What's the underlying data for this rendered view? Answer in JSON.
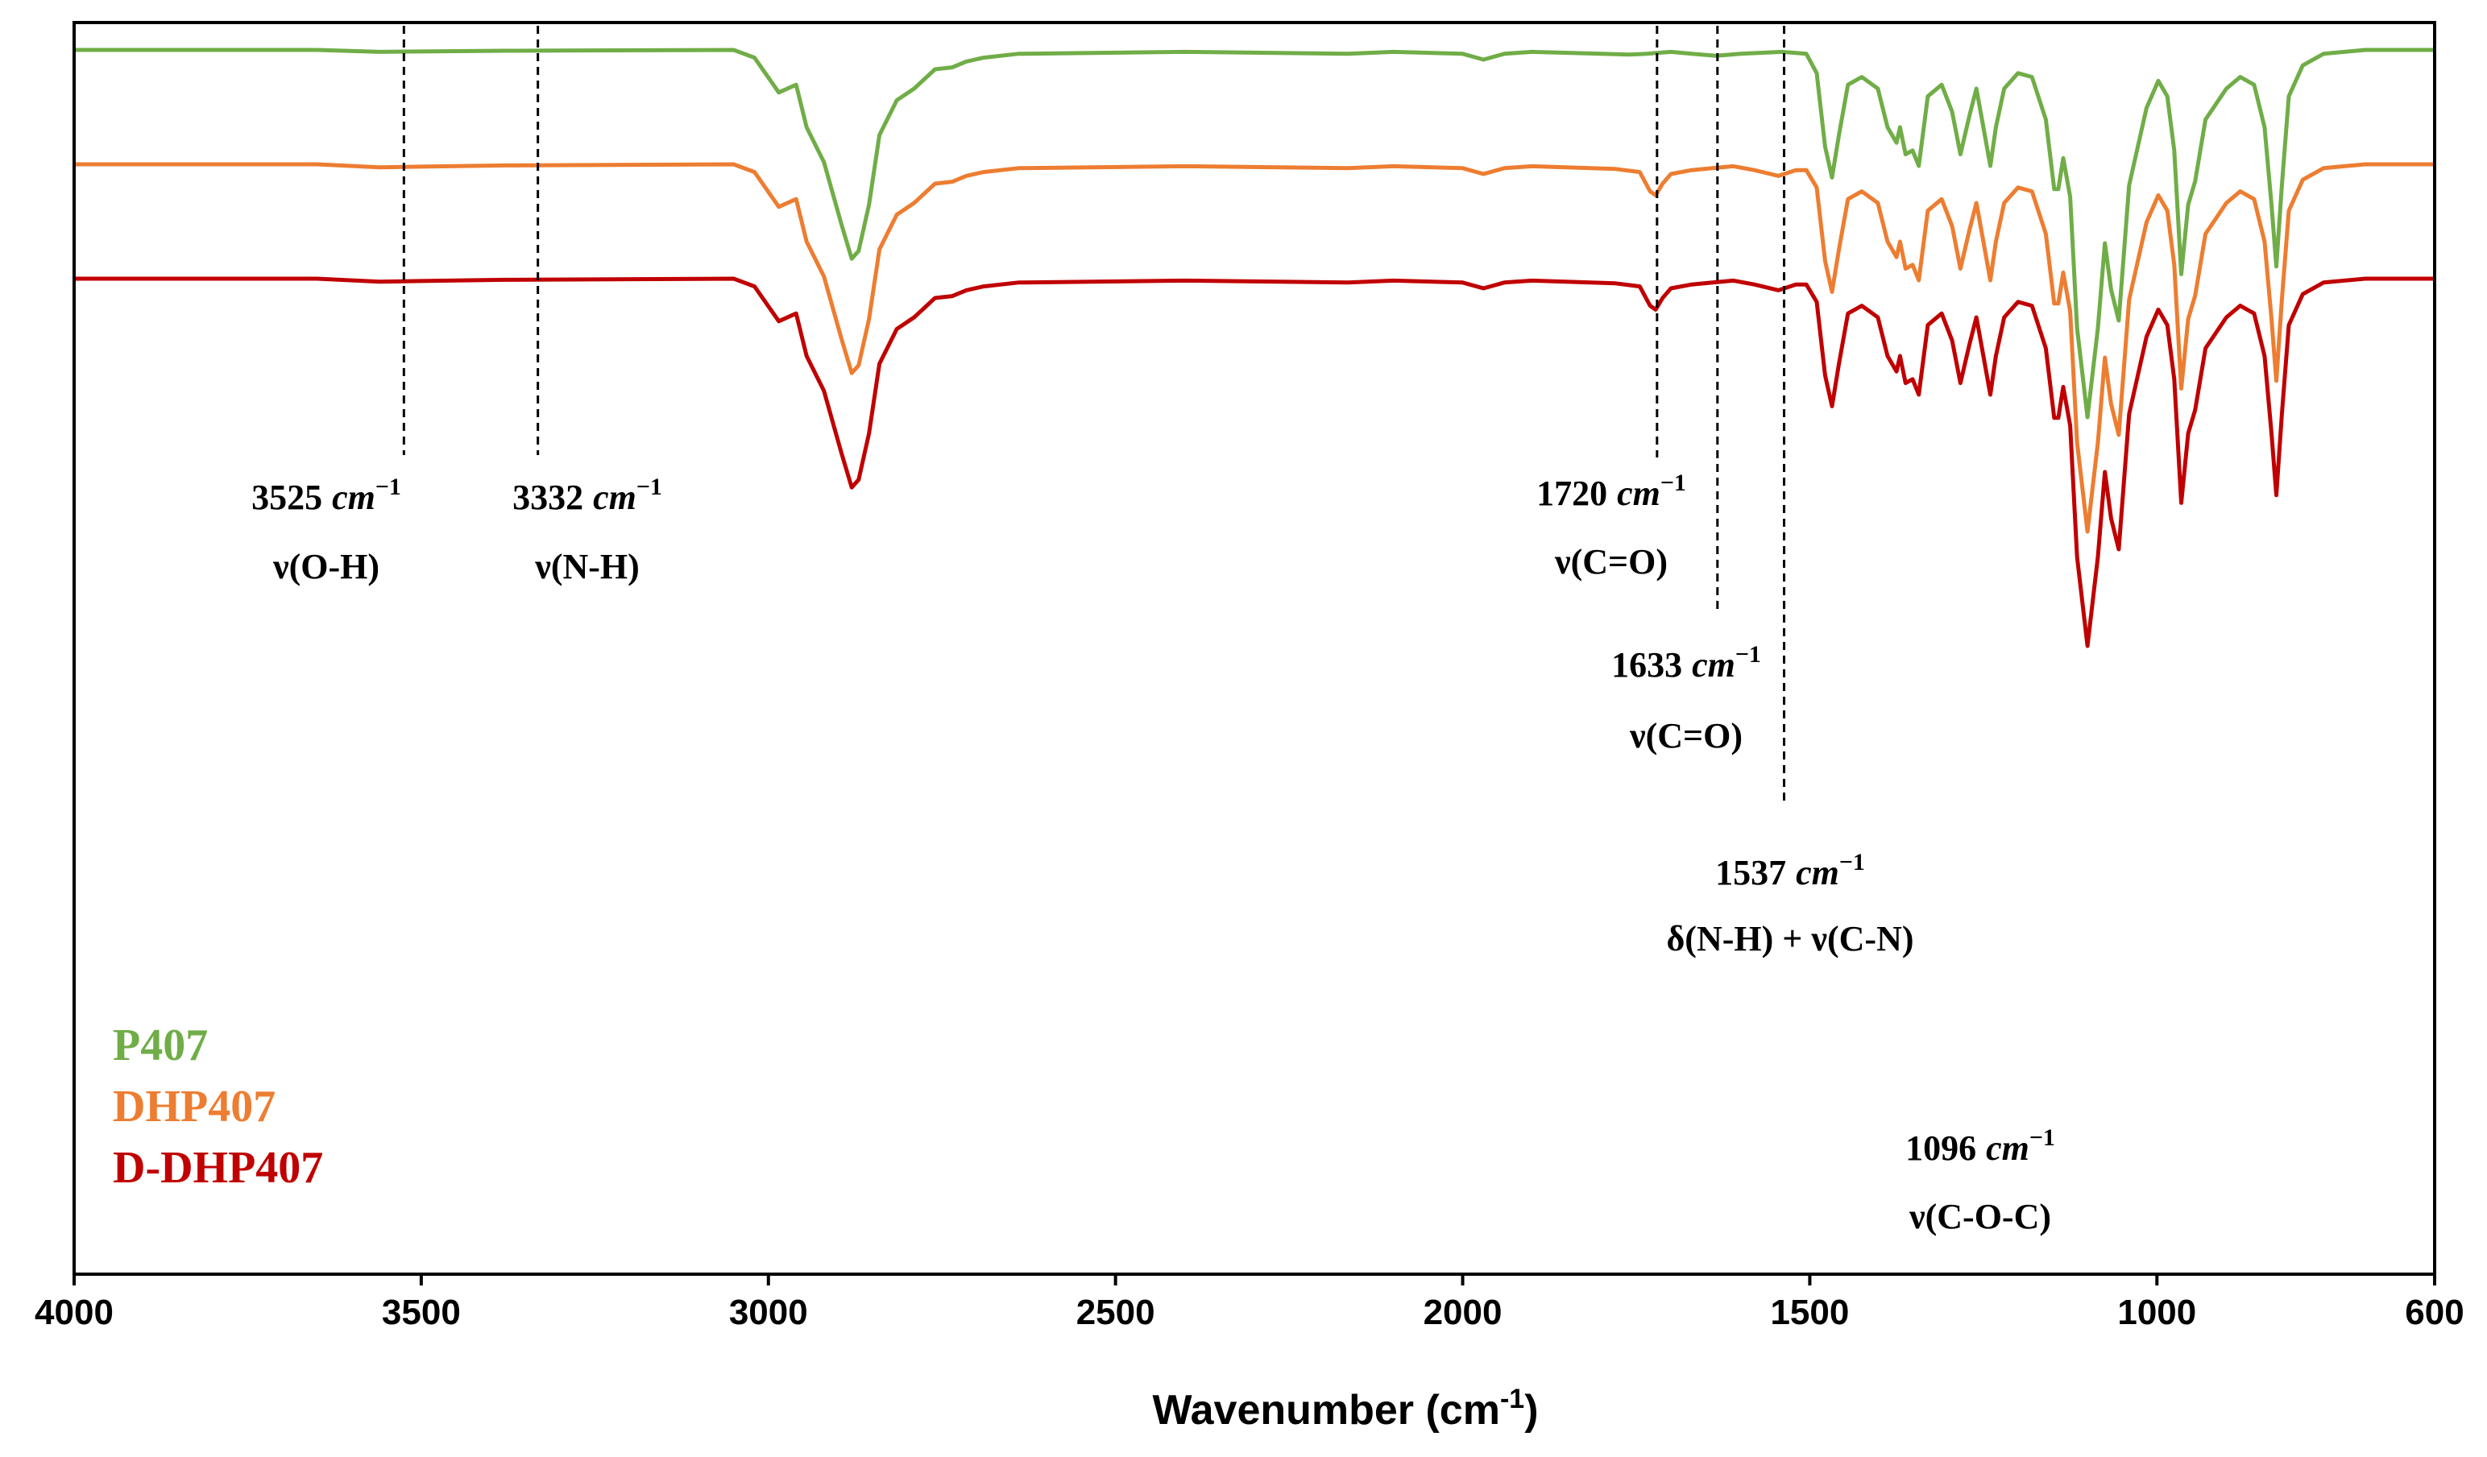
{
  "chart_data": {
    "type": "line",
    "title": "",
    "xlabel": "Wavenumber (cm",
    "xlabel_sup": "-1",
    "xlabel_close": ")",
    "ylabel": "",
    "xlim": [
      4000,
      600
    ],
    "x_reversed": true,
    "xticks": [
      4000,
      3500,
      3000,
      2500,
      2000,
      1500,
      1000,
      600
    ],
    "y_ticks_shown": false,
    "series": [
      {
        "name": "P407",
        "color": "#70ad47",
        "offset": 0,
        "points": [
          [
            4000,
            0
          ],
          [
            3650,
            0
          ],
          [
            3560,
            0.005
          ],
          [
            3500,
            0.004
          ],
          [
            3380,
            0.002
          ],
          [
            3050,
            0
          ],
          [
            3020,
            0.02
          ],
          [
            2985,
            0.11
          ],
          [
            2960,
            0.09
          ],
          [
            2945,
            0.2
          ],
          [
            2920,
            0.29
          ],
          [
            2895,
            0.45
          ],
          [
            2880,
            0.54
          ],
          [
            2870,
            0.52
          ],
          [
            2855,
            0.4
          ],
          [
            2840,
            0.22
          ],
          [
            2815,
            0.13
          ],
          [
            2790,
            0.1
          ],
          [
            2760,
            0.05
          ],
          [
            2735,
            0.045
          ],
          [
            2715,
            0.03
          ],
          [
            2690,
            0.02
          ],
          [
            2640,
            0.01
          ],
          [
            2400,
            0.005
          ],
          [
            2165,
            0.01
          ],
          [
            2100,
            0.005
          ],
          [
            2000,
            0.01
          ],
          [
            1970,
            0.025
          ],
          [
            1940,
            0.01
          ],
          [
            1900,
            0.005
          ],
          [
            1800,
            0.01
          ],
          [
            1760,
            0.012
          ],
          [
            1735,
            0.01
          ],
          [
            1700,
            0.005
          ],
          [
            1670,
            0.01
          ],
          [
            1635,
            0.015
          ],
          [
            1600,
            0.01
          ],
          [
            1540,
            0.005
          ],
          [
            1505,
            0.01
          ],
          [
            1490,
            0.06
          ],
          [
            1478,
            0.25
          ],
          [
            1468,
            0.33
          ],
          [
            1458,
            0.22
          ],
          [
            1445,
            0.09
          ],
          [
            1425,
            0.07
          ],
          [
            1402,
            0.1
          ],
          [
            1388,
            0.2
          ],
          [
            1375,
            0.24
          ],
          [
            1370,
            0.2
          ],
          [
            1362,
            0.27
          ],
          [
            1352,
            0.26
          ],
          [
            1343,
            0.3
          ],
          [
            1330,
            0.12
          ],
          [
            1310,
            0.09
          ],
          [
            1295,
            0.16
          ],
          [
            1283,
            0.27
          ],
          [
            1270,
            0.17
          ],
          [
            1260,
            0.1
          ],
          [
            1250,
            0.2
          ],
          [
            1240,
            0.3
          ],
          [
            1232,
            0.2
          ],
          [
            1220,
            0.1
          ],
          [
            1200,
            0.06
          ],
          [
            1180,
            0.07
          ],
          [
            1160,
            0.18
          ],
          [
            1148,
            0.36
          ],
          [
            1142,
            0.36
          ],
          [
            1135,
            0.28
          ],
          [
            1125,
            0.38
          ],
          [
            1115,
            0.72
          ],
          [
            1100,
            0.95
          ],
          [
            1085,
            0.72
          ],
          [
            1075,
            0.5
          ],
          [
            1066,
            0.62
          ],
          [
            1055,
            0.7
          ],
          [
            1040,
            0.35
          ],
          [
            1015,
            0.15
          ],
          [
            998,
            0.08
          ],
          [
            985,
            0.12
          ],
          [
            975,
            0.26
          ],
          [
            965,
            0.58
          ],
          [
            955,
            0.4
          ],
          [
            945,
            0.34
          ],
          [
            930,
            0.18
          ],
          [
            900,
            0.1
          ],
          [
            880,
            0.07
          ],
          [
            860,
            0.09
          ],
          [
            845,
            0.2
          ],
          [
            835,
            0.4
          ],
          [
            828,
            0.56
          ],
          [
            820,
            0.35
          ],
          [
            810,
            0.12
          ],
          [
            790,
            0.04
          ],
          [
            760,
            0.01
          ],
          [
            700,
            0
          ],
          [
            600,
            0
          ]
        ]
      },
      {
        "name": "DHP407",
        "color": "#ed7d31",
        "offset": 100,
        "points": [
          [
            4000,
            0
          ],
          [
            3650,
            0
          ],
          [
            3560,
            0.008
          ],
          [
            3500,
            0.006
          ],
          [
            3380,
            0.003
          ],
          [
            3050,
            0
          ],
          [
            3020,
            0.02
          ],
          [
            2985,
            0.11
          ],
          [
            2960,
            0.09
          ],
          [
            2945,
            0.2
          ],
          [
            2920,
            0.29
          ],
          [
            2895,
            0.45
          ],
          [
            2880,
            0.54
          ],
          [
            2870,
            0.52
          ],
          [
            2855,
            0.4
          ],
          [
            2840,
            0.22
          ],
          [
            2815,
            0.13
          ],
          [
            2790,
            0.1
          ],
          [
            2760,
            0.05
          ],
          [
            2735,
            0.045
          ],
          [
            2715,
            0.03
          ],
          [
            2690,
            0.02
          ],
          [
            2640,
            0.01
          ],
          [
            2400,
            0.005
          ],
          [
            2165,
            0.01
          ],
          [
            2100,
            0.005
          ],
          [
            2000,
            0.01
          ],
          [
            1970,
            0.025
          ],
          [
            1940,
            0.01
          ],
          [
            1900,
            0.005
          ],
          [
            1780,
            0.012
          ],
          [
            1745,
            0.02
          ],
          [
            1730,
            0.07
          ],
          [
            1722,
            0.08
          ],
          [
            1712,
            0.05
          ],
          [
            1700,
            0.025
          ],
          [
            1670,
            0.015
          ],
          [
            1640,
            0.01
          ],
          [
            1610,
            0.005
          ],
          [
            1580,
            0.015
          ],
          [
            1545,
            0.03
          ],
          [
            1520,
            0.015
          ],
          [
            1505,
            0.015
          ],
          [
            1490,
            0.06
          ],
          [
            1478,
            0.25
          ],
          [
            1468,
            0.33
          ],
          [
            1458,
            0.22
          ],
          [
            1445,
            0.09
          ],
          [
            1425,
            0.07
          ],
          [
            1402,
            0.1
          ],
          [
            1388,
            0.2
          ],
          [
            1375,
            0.24
          ],
          [
            1370,
            0.2
          ],
          [
            1362,
            0.27
          ],
          [
            1352,
            0.26
          ],
          [
            1343,
            0.3
          ],
          [
            1330,
            0.12
          ],
          [
            1310,
            0.09
          ],
          [
            1295,
            0.16
          ],
          [
            1283,
            0.27
          ],
          [
            1270,
            0.17
          ],
          [
            1260,
            0.1
          ],
          [
            1250,
            0.2
          ],
          [
            1240,
            0.3
          ],
          [
            1232,
            0.2
          ],
          [
            1220,
            0.1
          ],
          [
            1200,
            0.06
          ],
          [
            1180,
            0.07
          ],
          [
            1160,
            0.18
          ],
          [
            1148,
            0.36
          ],
          [
            1142,
            0.36
          ],
          [
            1135,
            0.28
          ],
          [
            1125,
            0.38
          ],
          [
            1115,
            0.72
          ],
          [
            1100,
            0.95
          ],
          [
            1085,
            0.72
          ],
          [
            1075,
            0.5
          ],
          [
            1066,
            0.62
          ],
          [
            1055,
            0.7
          ],
          [
            1040,
            0.35
          ],
          [
            1015,
            0.15
          ],
          [
            998,
            0.08
          ],
          [
            985,
            0.12
          ],
          [
            975,
            0.26
          ],
          [
            965,
            0.58
          ],
          [
            955,
            0.4
          ],
          [
            945,
            0.34
          ],
          [
            930,
            0.18
          ],
          [
            900,
            0.1
          ],
          [
            880,
            0.07
          ],
          [
            860,
            0.09
          ],
          [
            845,
            0.2
          ],
          [
            835,
            0.4
          ],
          [
            828,
            0.56
          ],
          [
            820,
            0.35
          ],
          [
            810,
            0.12
          ],
          [
            790,
            0.04
          ],
          [
            760,
            0.01
          ],
          [
            700,
            0
          ],
          [
            600,
            0
          ]
        ]
      },
      {
        "name": "D-DHP407",
        "color": "#c00000",
        "offset": 200,
        "points": [
          [
            4000,
            0
          ],
          [
            3650,
            0
          ],
          [
            3560,
            0.008
          ],
          [
            3500,
            0.006
          ],
          [
            3380,
            0.003
          ],
          [
            3050,
            0
          ],
          [
            3020,
            0.02
          ],
          [
            2985,
            0.11
          ],
          [
            2960,
            0.09
          ],
          [
            2945,
            0.2
          ],
          [
            2920,
            0.29
          ],
          [
            2895,
            0.45
          ],
          [
            2880,
            0.54
          ],
          [
            2870,
            0.52
          ],
          [
            2855,
            0.4
          ],
          [
            2840,
            0.22
          ],
          [
            2815,
            0.13
          ],
          [
            2790,
            0.1
          ],
          [
            2760,
            0.05
          ],
          [
            2735,
            0.045
          ],
          [
            2715,
            0.03
          ],
          [
            2690,
            0.02
          ],
          [
            2640,
            0.01
          ],
          [
            2400,
            0.005
          ],
          [
            2165,
            0.01
          ],
          [
            2100,
            0.005
          ],
          [
            2000,
            0.01
          ],
          [
            1970,
            0.025
          ],
          [
            1940,
            0.01
          ],
          [
            1900,
            0.005
          ],
          [
            1780,
            0.012
          ],
          [
            1745,
            0.02
          ],
          [
            1730,
            0.07
          ],
          [
            1722,
            0.08
          ],
          [
            1712,
            0.05
          ],
          [
            1700,
            0.025
          ],
          [
            1670,
            0.015
          ],
          [
            1640,
            0.01
          ],
          [
            1610,
            0.005
          ],
          [
            1580,
            0.015
          ],
          [
            1545,
            0.03
          ],
          [
            1520,
            0.015
          ],
          [
            1505,
            0.015
          ],
          [
            1490,
            0.06
          ],
          [
            1478,
            0.25
          ],
          [
            1468,
            0.33
          ],
          [
            1458,
            0.22
          ],
          [
            1445,
            0.09
          ],
          [
            1425,
            0.07
          ],
          [
            1402,
            0.1
          ],
          [
            1388,
            0.2
          ],
          [
            1375,
            0.24
          ],
          [
            1370,
            0.2
          ],
          [
            1362,
            0.27
          ],
          [
            1352,
            0.26
          ],
          [
            1343,
            0.3
          ],
          [
            1330,
            0.12
          ],
          [
            1310,
            0.09
          ],
          [
            1295,
            0.16
          ],
          [
            1283,
            0.27
          ],
          [
            1270,
            0.17
          ],
          [
            1260,
            0.1
          ],
          [
            1250,
            0.2
          ],
          [
            1240,
            0.3
          ],
          [
            1232,
            0.2
          ],
          [
            1220,
            0.1
          ],
          [
            1200,
            0.06
          ],
          [
            1180,
            0.07
          ],
          [
            1160,
            0.18
          ],
          [
            1148,
            0.36
          ],
          [
            1142,
            0.36
          ],
          [
            1135,
            0.28
          ],
          [
            1125,
            0.38
          ],
          [
            1115,
            0.72
          ],
          [
            1100,
            0.95
          ],
          [
            1085,
            0.72
          ],
          [
            1075,
            0.5
          ],
          [
            1066,
            0.62
          ],
          [
            1055,
            0.7
          ],
          [
            1040,
            0.35
          ],
          [
            1015,
            0.15
          ],
          [
            998,
            0.08
          ],
          [
            985,
            0.12
          ],
          [
            975,
            0.26
          ],
          [
            965,
            0.58
          ],
          [
            955,
            0.4
          ],
          [
            945,
            0.34
          ],
          [
            930,
            0.18
          ],
          [
            900,
            0.1
          ],
          [
            880,
            0.07
          ],
          [
            860,
            0.09
          ],
          [
            845,
            0.2
          ],
          [
            835,
            0.4
          ],
          [
            828,
            0.56
          ],
          [
            820,
            0.35
          ],
          [
            810,
            0.12
          ],
          [
            790,
            0.04
          ],
          [
            760,
            0.01
          ],
          [
            700,
            0
          ],
          [
            600,
            0
          ]
        ]
      }
    ],
    "annotations": [
      {
        "id": "ann-3525",
        "x": 3525,
        "value": "3525",
        "unit": "cm",
        "sup": "−1",
        "label": "ν(O-H)"
      },
      {
        "id": "ann-3332",
        "x": 3332,
        "value": "3332",
        "unit": "cm",
        "sup": "−1",
        "label": "ν(N-H)"
      },
      {
        "id": "ann-1720",
        "x": 1720,
        "value": "1720",
        "unit": "cm",
        "sup": "−1",
        "label": "ν(C=O)"
      },
      {
        "id": "ann-1633",
        "x": 1633,
        "value": "1633",
        "unit": "cm",
        "sup": "−1",
        "label": "ν(C=O)"
      },
      {
        "id": "ann-1537",
        "x": 1537,
        "value": "1537",
        "unit": "cm",
        "sup": "−1",
        "label": "δ(N-H) + ν(C-N)"
      },
      {
        "id": "ann-1096",
        "x": 1096,
        "value": "1096",
        "unit": "cm",
        "sup": "−1",
        "label": "ν(C-O-C)"
      }
    ],
    "legend": [
      {
        "name": "P407",
        "color": "#70ad47"
      },
      {
        "name": "DHP407",
        "color": "#ed7d31"
      },
      {
        "name": "D-DHP407",
        "color": "#c00000"
      }
    ],
    "legend_position": "bottom-left"
  }
}
